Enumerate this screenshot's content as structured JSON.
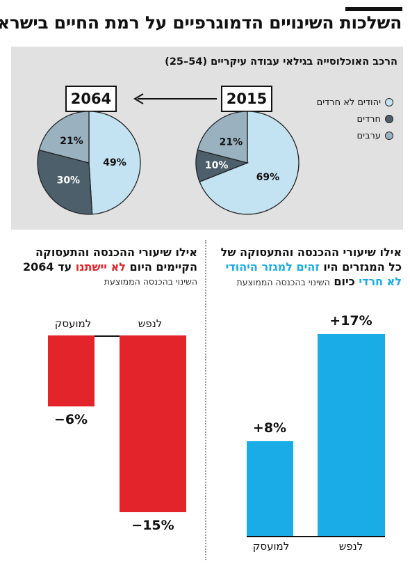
{
  "title": "השלכות השינויים הדמוגרפיים על רמת החיים בישראל",
  "panel": {
    "title": "הרכב האוכלוסייה בגילאי עבודה עיקריים (54–25)",
    "legend": [
      {
        "label": "יהודים לא חרדים",
        "color": "#c3e3f3"
      },
      {
        "label": "חרדים",
        "color": "#4c5f6b"
      },
      {
        "label": "ערבים",
        "color": "#9ab1c0"
      }
    ],
    "year_from": "2015",
    "year_to": "2064"
  },
  "left_section": {
    "line1": "אילו שיעורי ההכנסה והתעסוקה",
    "line2_a": "הקיימים היום",
    "line2_red": "לא יישתנו",
    "line2_b": "עד 2064",
    "sub": "השינוי בהכנסה הממוצעת"
  },
  "right_section": {
    "line1": "אילו שיעורי ההכנסה והתעסוקה של",
    "line2_a": "כל המגזרים היו",
    "line2_cyan": "זהים למגזר היהודי",
    "line3_cyan": "לא חרדי",
    "line3_b": "כיום",
    "sub": "השינוי בהכנסה הממוצעת"
  },
  "chart_data": [
    {
      "type": "pie",
      "title": "2015",
      "slices": [
        {
          "name": "יהודים לא חרדים",
          "value": 69,
          "label": "69%",
          "color": "#c3e3f3"
        },
        {
          "name": "חרדים",
          "value": 10,
          "label": "10%",
          "color": "#4c5f6b"
        },
        {
          "name": "ערבים",
          "value": 21,
          "label": "21%",
          "color": "#9ab1c0"
        }
      ]
    },
    {
      "type": "pie",
      "title": "2064",
      "slices": [
        {
          "name": "יהודים לא חרדים",
          "value": 49,
          "label": "49%",
          "color": "#c3e3f3"
        },
        {
          "name": "חרדים",
          "value": 30,
          "label": "30%",
          "color": "#4c5f6b"
        },
        {
          "name": "ערבים",
          "value": 21,
          "label": "21%",
          "color": "#9ab1c0"
        }
      ]
    },
    {
      "type": "bar",
      "categories": [
        "למועסק",
        "לנפש"
      ],
      "values": [
        -6,
        -15
      ],
      "labels": [
        "−6%",
        "−15%"
      ],
      "color": "#e3252b",
      "ylim": [
        -15,
        0
      ]
    },
    {
      "type": "bar",
      "categories": [
        "למועסק",
        "לנפש"
      ],
      "values": [
        8,
        17
      ],
      "labels": [
        "+8%",
        "+17%"
      ],
      "color": "#1aace6",
      "ylim": [
        0,
        17
      ]
    }
  ]
}
